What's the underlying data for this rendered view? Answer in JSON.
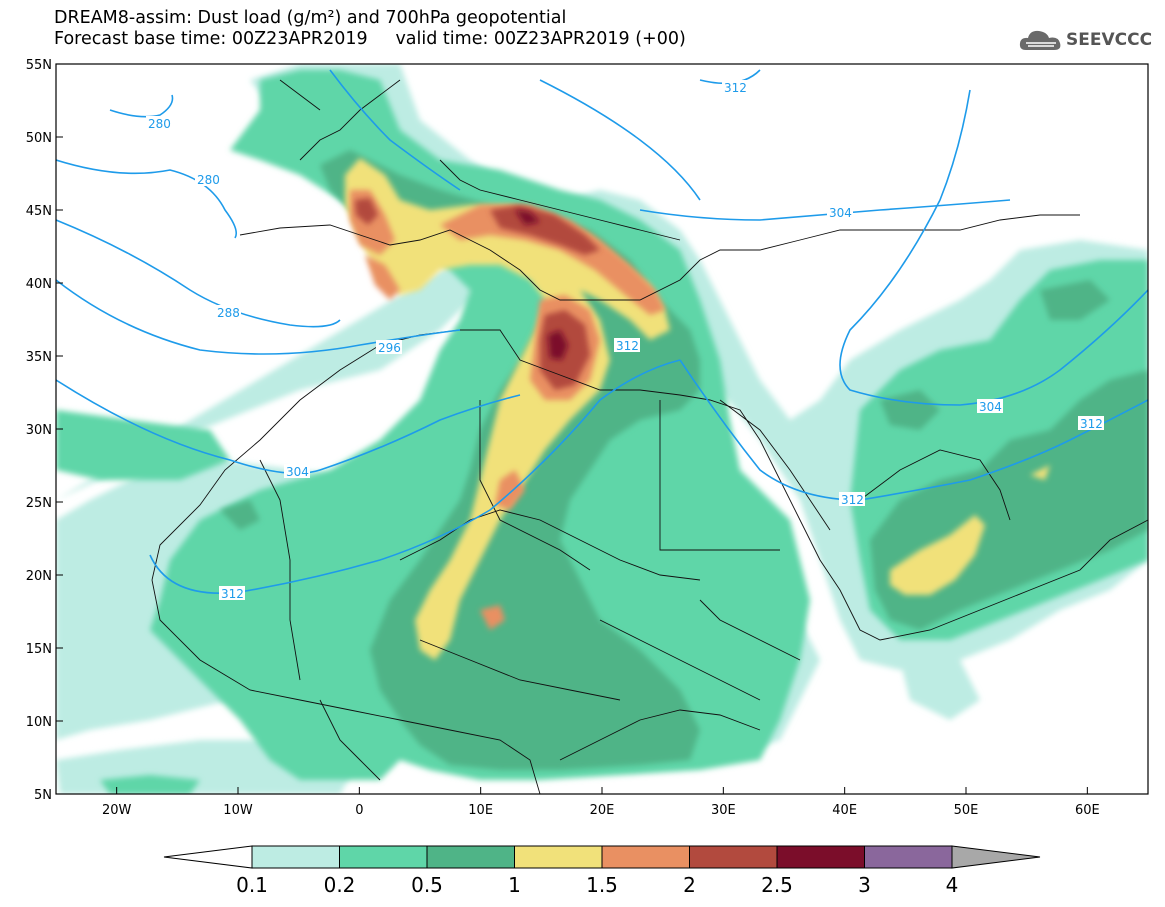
{
  "title": {
    "line1": "DREAM8-assim: Dust load (g/m²) and 700hPa geopotential",
    "line2": "Forecast base time: 00Z23APR2019     valid time: 00Z23APR2019 (+00)"
  },
  "logo": {
    "text": "SEEVCCC",
    "icon": "cloud-icon"
  },
  "map": {
    "lat_range": [
      5,
      55
    ],
    "lon_range": [
      -25,
      65
    ],
    "lat_ticks": [
      "5N",
      "10N",
      "15N",
      "20N",
      "25N",
      "30N",
      "35N",
      "40N",
      "45N",
      "50N",
      "55N"
    ],
    "lon_ticks": [
      "20W",
      "10W",
      "0",
      "10E",
      "20E",
      "30E",
      "40E",
      "50E",
      "60E"
    ],
    "contour_color": "#1e9bea",
    "contour_labels": [
      "280",
      "280",
      "288",
      "296",
      "304",
      "312",
      "312",
      "312",
      "304",
      "312",
      "304",
      "312"
    ]
  },
  "legend": {
    "labels": [
      "0.1",
      "0.2",
      "0.5",
      "1",
      "1.5",
      "2",
      "2.5",
      "3",
      "4"
    ],
    "colors": [
      "#bdece3",
      "#5fd6a8",
      "#4fb487",
      "#f1e17a",
      "#e99062",
      "#b24a3e",
      "#7b0d2a",
      "#8a679c"
    ],
    "low_color": "#ffffff",
    "high_color": "#a8a8a8"
  }
}
